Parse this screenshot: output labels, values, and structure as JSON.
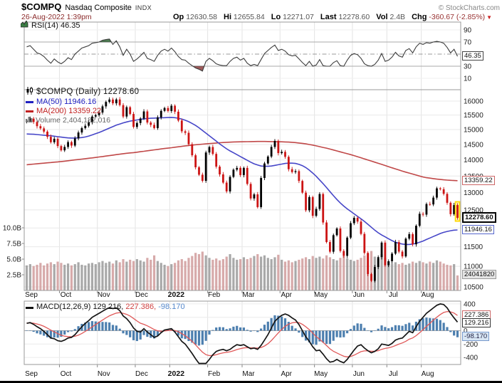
{
  "header": {
    "symbol": "$COMPQ",
    "name": "Nasdaq Composite",
    "exchange": "INDX",
    "credit": "© StockCharts.com",
    "datetime": "26-Aug-2022 1:39pm",
    "quote": [
      {
        "label": "Op",
        "value": "12630.58"
      },
      {
        "label": "Hi",
        "value": "12655.84"
      },
      {
        "label": "Lo",
        "value": "12271.07"
      },
      {
        "label": "Last",
        "value": "12278.60"
      },
      {
        "label": "Vol",
        "value": "2.4B"
      },
      {
        "label": "Chg",
        "value": "-360.67 (-2.85%)"
      }
    ],
    "change_arrow": "▼"
  },
  "legend": {
    "rsi": "RSI(14) 46.35",
    "title": "$COMPQ (Daily) 12278.60",
    "ma50": "MA(50) 11946.16",
    "ma200": "MA(200) 13359.22",
    "volume": "Volume 2,404,182,016",
    "macd_1": "MACD(12,26,9) 129.216,",
    "macd_2": "227.386,",
    "macd_3": "-98.170"
  },
  "badges": {
    "rsi": "46.35",
    "ma200": "13359.22",
    "last": "12278.60",
    "ma50": "11946.16",
    "volume": "24041820",
    "macd_signal": "227.386",
    "macd": "129.216",
    "macd_hist": "-98.170"
  },
  "chart_data": {
    "type": "candlestick-multi-panel",
    "panels": [
      "RSI(14)",
      "price+volume",
      "MACD(12,26,9)"
    ],
    "months": [
      "Sep",
      "Oct",
      "Nov",
      "Dec",
      "2022",
      "Feb",
      "Mar",
      "Apr",
      "May",
      "Jun",
      "Jul",
      "Aug"
    ],
    "month_start_idx": [
      0,
      10,
      21,
      32,
      42,
      53,
      63,
      74,
      84,
      95,
      105,
      115
    ],
    "first_open": 15260,
    "close": [
      15310,
      15375,
      15260,
      15115,
      15040,
      14930,
      14755,
      14575,
      14690,
      14449,
      14310,
      14420,
      14580,
      14465,
      14700,
      14900,
      15050,
      15130,
      15250,
      15450,
      15498,
      15590,
      15810,
      15970,
      16057,
      15920,
      16060,
      15855,
      15450,
      15780,
      15540,
      15090,
      15225,
      15380,
      15630,
      15240,
      15160,
      15050,
      15420,
      15650,
      15750,
      15645,
      15833,
      15620,
      15310,
      14940,
      14890,
      14510,
      14150,
      13770,
      13540,
      13353,
      14240,
      14418,
      14194,
      13790,
      13550,
      13300,
      13037,
      13474,
      13695,
      13751,
      13530,
      13750,
      13260,
      12830,
      12950,
      12581,
      13440,
      13890,
      14110,
      14420,
      14620,
      14220,
      14260,
      14100,
      13710,
      13620,
      13650,
      13350,
      13000,
      12490,
      12870,
      12335,
      12530,
      12960,
      12150,
      11623,
      11371,
      11805,
      11985,
      11390,
      11265,
      11740,
      12130,
      12280,
      12175,
      11840,
      11340,
      10810,
      10646,
      10983,
      11232,
      11608,
      11029,
      11128,
      11322,
      11621,
      11373,
      11251,
      11713,
      11834,
      11563,
      12060,
      12391,
      12369,
      12669,
      12658,
      12855,
      13128,
      13102,
      12965,
      12705,
      12381,
      12639,
      12279
    ],
    "volume_b": [
      4.0,
      4.2,
      3.9,
      4.1,
      4.4,
      4.0,
      4.3,
      4.5,
      4.2,
      4.6,
      4.4,
      4.1,
      4.3,
      4.0,
      4.2,
      4.5,
      4.1,
      4.0,
      4.3,
      4.4,
      4.2,
      4.5,
      4.7,
      4.4,
      4.6,
      4.3,
      4.8,
      4.5,
      5.0,
      4.6,
      4.9,
      4.7,
      5.0,
      4.8,
      4.6,
      5.2,
      4.9,
      5.6,
      4.7,
      4.4,
      4.1,
      3.9,
      4.2,
      4.4,
      4.8,
      5.0,
      4.7,
      5.2,
      5.5,
      6.0,
      5.8,
      6.2,
      5.6,
      5.2,
      4.9,
      5.1,
      4.8,
      5.0,
      5.4,
      5.8,
      5.2,
      4.9,
      5.0,
      5.3,
      5.0,
      5.2,
      5.5,
      5.8,
      5.4,
      5.6,
      5.2,
      5.0,
      5.3,
      5.7,
      4.9,
      4.6,
      4.8,
      4.5,
      4.7,
      4.9,
      5.1,
      5.3,
      5.0,
      5.5,
      5.2,
      5.4,
      5.1,
      5.6,
      5.3,
      5.0,
      4.8,
      5.2,
      5.5,
      5.1,
      4.9,
      4.7,
      4.9,
      5.2,
      5.6,
      5.9,
      6.3,
      5.4,
      5.0,
      5.8,
      5.2,
      4.6,
      4.3,
      4.5,
      4.2,
      4.4,
      4.1,
      4.3,
      4.6,
      4.4,
      4.7,
      4.5,
      4.3,
      4.6,
      4.4,
      4.8,
      4.6,
      4.3,
      4.1,
      4.0,
      4.2,
      2.4
    ],
    "ma50": [
      14850,
      14845,
      14840,
      14830,
      14820,
      14810,
      14800,
      14790,
      14775,
      14760,
      14745,
      14730,
      14720,
      14715,
      14715,
      14720,
      14730,
      14750,
      14780,
      14820,
      14860,
      14900,
      14950,
      15000,
      15050,
      15100,
      15150,
      15190,
      15230,
      15260,
      15290,
      15310,
      15330,
      15350,
      15370,
      15380,
      15390,
      15395,
      15400,
      15405,
      15410,
      15415,
      15420,
      15410,
      15390,
      15360,
      15320,
      15270,
      15210,
      15140,
      15060,
      14970,
      14880,
      14790,
      14700,
      14610,
      14520,
      14440,
      14360,
      14290,
      14230,
      14170,
      14110,
      14050,
      13990,
      13930,
      13880,
      13840,
      13810,
      13800,
      13800,
      13810,
      13830,
      13850,
      13870,
      13890,
      13900,
      13900,
      13890,
      13860,
      13820,
      13760,
      13680,
      13590,
      13490,
      13380,
      13270,
      13150,
      13030,
      12910,
      12800,
      12700,
      12610,
      12530,
      12460,
      12390,
      12320,
      12250,
      12180,
      12100,
      12020,
      11940,
      11870,
      11810,
      11760,
      11710,
      11660,
      11620,
      11590,
      11570,
      11560,
      11560,
      11570,
      11590,
      11620,
      11650,
      11690,
      11730,
      11770,
      11810,
      11850,
      11880,
      11905,
      11925,
      11940,
      11946
    ],
    "ma200": [
      13850,
      13860,
      13870,
      13880,
      13890,
      13900,
      13910,
      13920,
      13930,
      13940,
      13950,
      13963,
      13976,
      13989,
      14002,
      14015,
      14028,
      14041,
      14054,
      14067,
      14080,
      14095,
      14110,
      14125,
      14140,
      14155,
      14170,
      14185,
      14200,
      14215,
      14225,
      14235,
      14250,
      14265,
      14280,
      14295,
      14310,
      14325,
      14340,
      14355,
      14370,
      14380,
      14395,
      14410,
      14425,
      14440,
      14455,
      14468,
      14480,
      14492,
      14502,
      14512,
      14520,
      14530,
      14540,
      14550,
      14558,
      14565,
      14572,
      14578,
      14583,
      14587,
      14590,
      14592,
      14594,
      14596,
      14598,
      14600,
      14600,
      14600,
      14598,
      14596,
      14594,
      14592,
      14590,
      14585,
      14580,
      14572,
      14562,
      14550,
      14536,
      14520,
      14500,
      14480,
      14455,
      14430,
      14405,
      14380,
      14350,
      14320,
      14290,
      14260,
      14230,
      14200,
      14170,
      14140,
      14105,
      14070,
      14035,
      14000,
      13965,
      13930,
      13895,
      13860,
      13825,
      13790,
      13755,
      13720,
      13685,
      13650,
      13620,
      13590,
      13560,
      13530,
      13500,
      13470,
      13450,
      13435,
      13420,
      13405,
      13395,
      13385,
      13375,
      13368,
      13362,
      13359
    ],
    "rsi": [
      62,
      64,
      58,
      52,
      50,
      46,
      40,
      35,
      42,
      37,
      34,
      38,
      44,
      41,
      50,
      55,
      60,
      62,
      64,
      68,
      69,
      70,
      73,
      74,
      75,
      66,
      72,
      62,
      48,
      58,
      50,
      38,
      42,
      47,
      53,
      43,
      41,
      38,
      48,
      55,
      58,
      55,
      60,
      54,
      46,
      41,
      40,
      35,
      31,
      27,
      25,
      22,
      38,
      43,
      39,
      34,
      32,
      31,
      31,
      38,
      43,
      45,
      40,
      43,
      35,
      31,
      33,
      31,
      41,
      51,
      56,
      61,
      65,
      56,
      58,
      55,
      49,
      47,
      48,
      42,
      36,
      31,
      38,
      30,
      32,
      41,
      31,
      30,
      30,
      36,
      39,
      31,
      30,
      40,
      48,
      51,
      49,
      43,
      34,
      31,
      30,
      33,
      40,
      51,
      38,
      40,
      45,
      53,
      47,
      45,
      56,
      59,
      52,
      62,
      68,
      66,
      69,
      68,
      70,
      71,
      70,
      68,
      61,
      52,
      58,
      46.35
    ],
    "macd": [
      110,
      120,
      95,
      60,
      30,
      -10,
      -60,
      -110,
      -120,
      -150,
      -160,
      -140,
      -110,
      -100,
      -60,
      0,
      60,
      110,
      150,
      200,
      230,
      260,
      290,
      320,
      345,
      330,
      340,
      300,
      220,
      180,
      120,
      40,
      -10,
      -20,
      30,
      -20,
      -60,
      -100,
      -80,
      -30,
      10,
      20,
      30,
      -20,
      -90,
      -160,
      -200,
      -270,
      -340,
      -420,
      -490,
      -530,
      -510,
      -430,
      -360,
      -310,
      -290,
      -280,
      -300,
      -280,
      -240,
      -210,
      -220,
      -210,
      -240,
      -270,
      -260,
      -280,
      -220,
      -140,
      -60,
      40,
      140,
      190,
      230,
      250,
      230,
      190,
      160,
      90,
      0,
      -90,
      -160,
      -240,
      -300,
      -290,
      -350,
      -420,
      -470,
      -460,
      -430,
      -460,
      -480,
      -430,
      -360,
      -290,
      -230,
      -210,
      -260,
      -300,
      -330,
      -310,
      -270,
      -200,
      -210,
      -220,
      -190,
      -140,
      -120,
      -110,
      -60,
      -10,
      -30,
      60,
      140,
      200,
      260,
      300,
      340,
      380,
      400,
      390,
      340,
      260,
      190,
      129.216
    ],
    "signal": [
      115,
      117,
      112,
      100,
      85,
      65,
      38,
      8,
      -18,
      -45,
      -68,
      -82,
      -88,
      -90,
      -84,
      -67,
      -42,
      -11,
      21,
      57,
      92,
      126,
      159,
      191,
      222,
      244,
      263,
      270,
      260,
      244,
      219,
      183,
      145,
      112,
      95,
      72,
      46,
      17,
      -2,
      -8,
      -4,
      1,
      7,
      2,
      -16,
      -45,
      -76,
      -115,
      -160,
      -212,
      -268,
      -320,
      -358,
      -372,
      -370,
      -358,
      -344,
      -331,
      -324,
      -315,
      -300,
      -282,
      -269,
      -257,
      -253,
      -256,
      -256,
      -260,
      -252,
      -229,
      -195,
      -148,
      -90,
      -34,
      19,
      65,
      98,
      117,
      126,
      119,
      95,
      58,
      15,
      -36,
      -89,
      -129,
      -173,
      -222,
      -271,
      -309,
      -333,
      -358,
      -382,
      -391,
      -385,
      -366,
      -339,
      -313,
      -302,
      -301,
      -307,
      -307,
      -299,
      -279,
      -265,
      -256,
      -243,
      -222,
      -201,
      -183,
      -158,
      -128,
      -108,
      -74,
      -31,
      15,
      64,
      111,
      157,
      202,
      242,
      272,
      286,
      281,
      263,
      227.386
    ],
    "price_ticks": [
      16000,
      15500,
      15000,
      14500,
      14000,
      13500,
      13000,
      12500,
      12000,
      11500,
      11000,
      10500
    ],
    "rsi_ticks": [
      90,
      70,
      30,
      10
    ],
    "rsi_overbought": 70,
    "rsi_oversold": 30,
    "rsi_mid": 50,
    "macd_ticks": [
      400,
      0,
      -200,
      -400
    ],
    "vol_ticks": [
      {
        "v": 10.0,
        "label": "10.0B"
      },
      {
        "v": 7.5,
        "label": "7.5B"
      },
      {
        "v": 5.0,
        "label": "5.0B"
      },
      {
        "v": 2.5,
        "label": "2.5B"
      }
    ],
    "colors": {
      "up": "#000000",
      "down": "#cc1414",
      "vol_up": "#9a9a9a",
      "vol_down": "#d09b9b",
      "ma50": "#4646c8",
      "ma200": "#c04848",
      "rsi_line": "#3d3d3d",
      "overbought_fill": "#4e7d52",
      "oversold_fill": "#9e5a5a",
      "macd_line": "#151515",
      "signal_line": "#e05858",
      "hist": "#4d7faf",
      "grid": "#e8e8e8",
      "frame": "#999999",
      "highlight": "#ffd700"
    }
  }
}
